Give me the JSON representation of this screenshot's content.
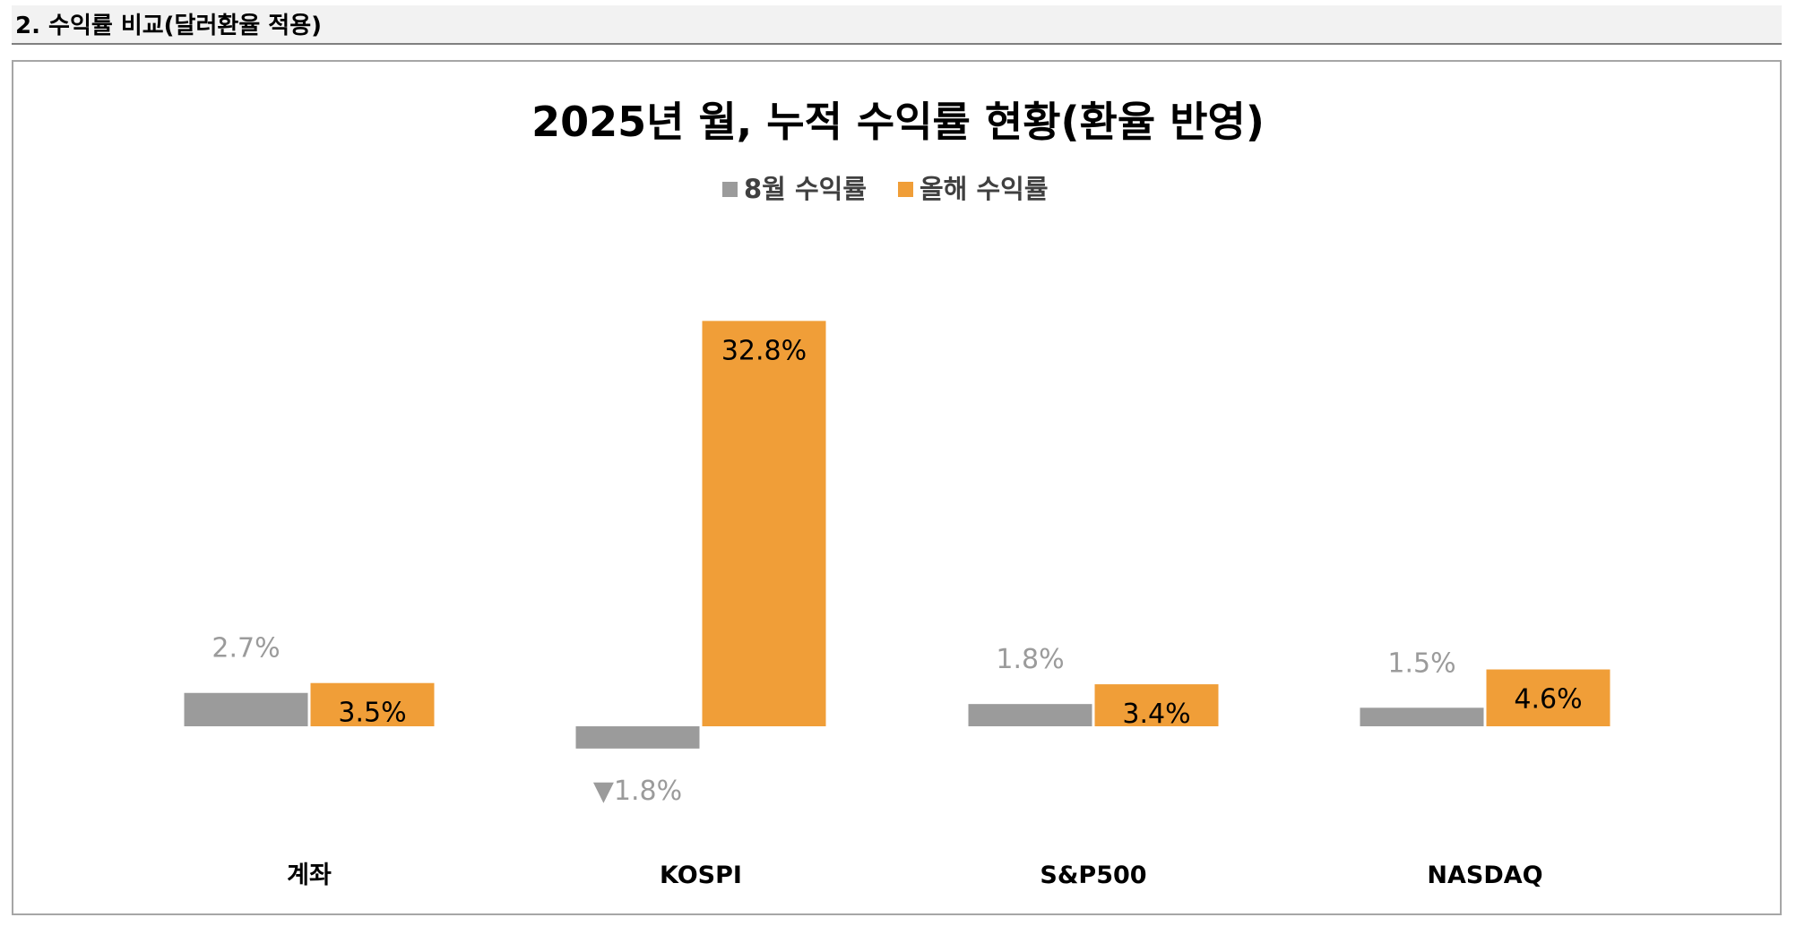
{
  "section": {
    "title": "2. 수익률 비교(달러환율 적용)"
  },
  "chart_data": {
    "type": "bar",
    "title": "2025년 월, 누적 수익률 현황(환율 반영)",
    "categories": [
      "계좌",
      "KOSPI",
      "S&P500",
      "NASDAQ"
    ],
    "series": [
      {
        "name": "8월 수익률",
        "color": "#9b9b9b",
        "values": [
          2.7,
          -1.8,
          1.8,
          1.5
        ],
        "labels": [
          "2.7%",
          "▼1.8%",
          "1.8%",
          "1.5%"
        ]
      },
      {
        "name": "올해 수익률",
        "color": "#f09e38",
        "values": [
          3.5,
          32.8,
          3.4,
          4.6
        ],
        "labels": [
          "3.5%",
          "32.8%",
          "3.4%",
          "4.6%"
        ]
      }
    ],
    "legend_position": "top",
    "grid": false,
    "ylim": [
      -10,
      40
    ],
    "colors": {
      "gray_label": "#9b9b9b",
      "orange_label": "#000000"
    }
  }
}
